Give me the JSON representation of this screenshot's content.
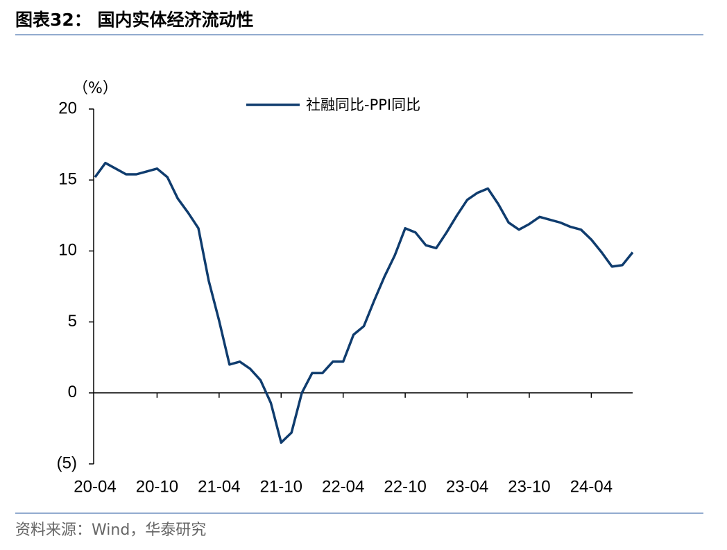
{
  "chart_data": {
    "type": "line",
    "title": "图表32： 国内实体经济流动性",
    "y_unit": "（%）",
    "source": "资料来源：Wind，华泰研究",
    "categories": [
      "20-04",
      null,
      null,
      null,
      null,
      null,
      "20-10",
      null,
      null,
      null,
      null,
      null,
      "21-04",
      null,
      null,
      null,
      null,
      null,
      "21-10",
      null,
      null,
      null,
      null,
      null,
      "22-04",
      null,
      null,
      null,
      null,
      null,
      "22-10",
      null,
      null,
      null,
      null,
      null,
      "23-04",
      null,
      null,
      null,
      null,
      null,
      "23-10",
      null,
      null,
      null,
      null,
      null,
      "24-04",
      null,
      null,
      null,
      null
    ],
    "series": [
      {
        "name": "社融同比-PPI同比",
        "color": "#0f3c6e",
        "values": [
          15.2,
          16.2,
          15.8,
          15.4,
          15.4,
          15.6,
          15.8,
          15.2,
          13.7,
          12.7,
          11.6,
          7.9,
          5.1,
          2.0,
          2.2,
          1.7,
          0.9,
          -0.7,
          -3.5,
          -2.8,
          0.0,
          1.4,
          1.4,
          2.2,
          2.2,
          4.1,
          4.7,
          6.5,
          8.2,
          9.7,
          11.6,
          11.3,
          10.4,
          10.2,
          11.3,
          12.5,
          13.6,
          14.1,
          14.4,
          13.3,
          12.0,
          11.5,
          11.9,
          12.4,
          12.2,
          12.0,
          11.7,
          11.5,
          10.8,
          9.9,
          8.9,
          9.0,
          9.9
        ]
      }
    ],
    "ylim": [
      -5,
      20
    ],
    "yticks": [
      {
        "value": -5,
        "label": "(5)"
      },
      0,
      5,
      10,
      15,
      20
    ],
    "legend": "top"
  }
}
